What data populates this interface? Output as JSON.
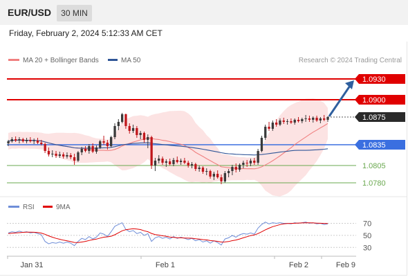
{
  "header": {
    "symbol": "EUR/USD",
    "interval": "30 MIN",
    "datetime": "Friday, February 2, 2024 5:12:33 AM CET"
  },
  "legend": {
    "ma20": "MA 20 + Bollinger Bands",
    "ma50": "MA 50",
    "credit": "Research © 2024 Trading Central",
    "rsi": "RSI",
    "rsi_ma": "9MA"
  },
  "colors": {
    "up_candle": "#3a3a3a",
    "down_candle": "#c0161b",
    "bollinger_fill": "#fbd9d9",
    "ma20": "#f08080",
    "ma50": "#2f5597",
    "resistance": "#e00000",
    "pivot": "#2a2a2a",
    "support_blue": "#3a6fe0",
    "support_green": "#6aa84f",
    "arrow": "#2f5f9e",
    "rsi_line": "#6f8ed8",
    "rsi_ma": "#e00000"
  },
  "chart_data": {
    "type": "candlestick",
    "price_ylim": [
      1.0768,
      1.0948
    ],
    "levels": [
      {
        "value": 1.093,
        "label": "1.0930",
        "kind": "resistance"
      },
      {
        "value": 1.09,
        "label": "1.0900",
        "kind": "resistance"
      },
      {
        "value": 1.0875,
        "label": "1.0875",
        "kind": "pivot"
      },
      {
        "value": 1.0835,
        "label": "1.0835",
        "kind": "support"
      },
      {
        "value": 1.0805,
        "label": "1.0805",
        "kind": "support"
      },
      {
        "value": 1.078,
        "label": "1.0780",
        "kind": "support"
      }
    ],
    "target_arrow": {
      "from": 1.0876,
      "to": 1.0928
    },
    "x_labels": [
      "Jan 31",
      "Feb 1",
      "Feb 2",
      "Feb 9"
    ],
    "candles": [
      [
        1.0837,
        1.0842,
        1.0833,
        1.084
      ],
      [
        1.084,
        1.0846,
        1.0838,
        1.0843
      ],
      [
        1.0843,
        1.0847,
        1.0839,
        1.0841
      ],
      [
        1.0841,
        1.0846,
        1.0837,
        1.0843
      ],
      [
        1.0843,
        1.0845,
        1.0838,
        1.084
      ],
      [
        1.084,
        1.0845,
        1.0837,
        1.0842
      ],
      [
        1.0842,
        1.0846,
        1.0838,
        1.084
      ],
      [
        1.084,
        1.0844,
        1.0836,
        1.0841
      ],
      [
        1.0841,
        1.0845,
        1.0836,
        1.0838
      ],
      [
        1.0838,
        1.0842,
        1.0834,
        1.0836
      ],
      [
        1.0836,
        1.0838,
        1.0823,
        1.0826
      ],
      [
        1.0826,
        1.0831,
        1.0818,
        1.0821
      ],
      [
        1.0821,
        1.0827,
        1.0817,
        1.0822
      ],
      [
        1.0822,
        1.0826,
        1.0816,
        1.0819
      ],
      [
        1.0819,
        1.0825,
        1.0816,
        1.0821
      ],
      [
        1.0821,
        1.0824,
        1.0815,
        1.0818
      ],
      [
        1.0818,
        1.0824,
        1.0815,
        1.082
      ],
      [
        1.082,
        1.0823,
        1.0814,
        1.0817
      ],
      [
        1.0817,
        1.0822,
        1.0806,
        1.0812
      ],
      [
        1.0812,
        1.0826,
        1.081,
        1.0824
      ],
      [
        1.0824,
        1.0832,
        1.082,
        1.0829
      ],
      [
        1.0829,
        1.0833,
        1.0824,
        1.0826
      ],
      [
        1.0826,
        1.0836,
        1.0822,
        1.0833
      ],
      [
        1.0833,
        1.0837,
        1.0823,
        1.0825
      ],
      [
        1.0825,
        1.0834,
        1.0822,
        1.0831
      ],
      [
        1.0831,
        1.0842,
        1.0829,
        1.084
      ],
      [
        1.084,
        1.0848,
        1.0835,
        1.0838
      ],
      [
        1.0838,
        1.0842,
        1.0828,
        1.0833
      ],
      [
        1.0833,
        1.0848,
        1.0831,
        1.0846
      ],
      [
        1.0846,
        1.0866,
        1.0843,
        1.0862
      ],
      [
        1.0862,
        1.0872,
        1.0856,
        1.0868
      ],
      [
        1.0868,
        1.0881,
        1.0866,
        1.0879
      ],
      [
        1.0879,
        1.088,
        1.0858,
        1.0862
      ],
      [
        1.0862,
        1.0866,
        1.0851,
        1.0855
      ],
      [
        1.0855,
        1.0864,
        1.0852,
        1.0859
      ],
      [
        1.0859,
        1.0862,
        1.0845,
        1.0849
      ],
      [
        1.0849,
        1.0855,
        1.0843,
        1.0852
      ],
      [
        1.0852,
        1.0854,
        1.0838,
        1.0842
      ],
      [
        1.0842,
        1.085,
        1.083,
        1.0846
      ],
      [
        1.0846,
        1.0848,
        1.08,
        1.0805
      ],
      [
        1.0805,
        1.0816,
        1.0797,
        1.0812
      ],
      [
        1.0812,
        1.082,
        1.0808,
        1.0815
      ],
      [
        1.0815,
        1.0818,
        1.0806,
        1.0809
      ],
      [
        1.0809,
        1.0814,
        1.0803,
        1.0811
      ],
      [
        1.0811,
        1.0815,
        1.0805,
        1.0807
      ],
      [
        1.0807,
        1.0816,
        1.0804,
        1.0813
      ],
      [
        1.0813,
        1.0818,
        1.0808,
        1.081
      ],
      [
        1.081,
        1.0815,
        1.0806,
        1.0812
      ],
      [
        1.0812,
        1.0816,
        1.0807,
        1.0809
      ],
      [
        1.0809,
        1.0812,
        1.0802,
        1.0805
      ],
      [
        1.0805,
        1.081,
        1.0801,
        1.0807
      ],
      [
        1.0807,
        1.0809,
        1.0797,
        1.08
      ],
      [
        1.08,
        1.0805,
        1.0796,
        1.0802
      ],
      [
        1.0802,
        1.0804,
        1.0793,
        1.0796
      ],
      [
        1.0796,
        1.0801,
        1.0791,
        1.0797
      ],
      [
        1.0797,
        1.0799,
        1.0786,
        1.0789
      ],
      [
        1.0789,
        1.0796,
        1.0784,
        1.0793
      ],
      [
        1.0793,
        1.0798,
        1.0786,
        1.0788
      ],
      [
        1.0788,
        1.0792,
        1.0778,
        1.0782
      ],
      [
        1.0782,
        1.0797,
        1.078,
        1.0794
      ],
      [
        1.0794,
        1.08,
        1.0788,
        1.0797
      ],
      [
        1.0797,
        1.0806,
        1.0791,
        1.0803
      ],
      [
        1.0803,
        1.0808,
        1.0795,
        1.0799
      ],
      [
        1.0799,
        1.0808,
        1.0796,
        1.0806
      ],
      [
        1.0806,
        1.0812,
        1.0801,
        1.0809
      ],
      [
        1.0809,
        1.0813,
        1.0803,
        1.0808
      ],
      [
        1.0808,
        1.0815,
        1.0804,
        1.0812
      ],
      [
        1.0812,
        1.0816,
        1.0806,
        1.0809
      ],
      [
        1.0809,
        1.0829,
        1.0806,
        1.0826
      ],
      [
        1.0826,
        1.0848,
        1.0824,
        1.0845
      ],
      [
        1.0845,
        1.0864,
        1.0842,
        1.0861
      ],
      [
        1.0861,
        1.0868,
        1.0855,
        1.0858
      ],
      [
        1.0858,
        1.087,
        1.0855,
        1.0867
      ],
      [
        1.0867,
        1.0872,
        1.0861,
        1.0864
      ],
      [
        1.0864,
        1.0873,
        1.0862,
        1.087
      ],
      [
        1.087,
        1.0874,
        1.0865,
        1.0868
      ],
      [
        1.0868,
        1.0872,
        1.0864,
        1.0869
      ],
      [
        1.0869,
        1.0873,
        1.0865,
        1.0867
      ],
      [
        1.0867,
        1.0873,
        1.0864,
        1.0871
      ],
      [
        1.0871,
        1.0875,
        1.0867,
        1.0869
      ],
      [
        1.0869,
        1.0874,
        1.0866,
        1.0872
      ],
      [
        1.0872,
        1.0878,
        1.0868,
        1.0873
      ],
      [
        1.0873,
        1.0877,
        1.0868,
        1.0871
      ],
      [
        1.0871,
        1.0876,
        1.0867,
        1.0874
      ],
      [
        1.0874,
        1.0877,
        1.0868,
        1.087
      ],
      [
        1.087,
        1.0875,
        1.0866,
        1.0873
      ],
      [
        1.0873,
        1.0878,
        1.0869,
        1.0871
      ],
      [
        1.0871,
        1.0876,
        1.0868,
        1.0875
      ]
    ],
    "rsi_ylim": [
      20,
      82
    ],
    "rsi_ticks": [
      70,
      50,
      30
    ],
    "rsi": [
      54,
      56,
      55,
      57,
      55,
      56,
      54,
      55,
      53,
      51,
      40,
      36,
      38,
      37,
      39,
      37,
      39,
      37,
      33,
      40,
      45,
      43,
      48,
      44,
      47,
      54,
      52,
      48,
      56,
      65,
      68,
      71,
      60,
      56,
      58,
      53,
      55,
      50,
      53,
      40,
      46,
      48,
      45,
      47,
      44,
      48,
      45,
      47,
      45,
      43,
      45,
      41,
      43,
      39,
      41,
      37,
      41,
      38,
      34,
      44,
      46,
      50,
      47,
      51,
      53,
      52,
      54,
      52,
      62,
      68,
      72,
      69,
      71,
      70,
      71,
      70,
      70,
      69,
      71,
      70,
      71,
      72,
      70,
      71,
      69,
      70,
      68,
      69
    ],
    "rsi_ma": [
      53,
      53.5,
      54,
      54.5,
      55,
      55.3,
      55.2,
      55.1,
      54.8,
      53.8,
      51.8,
      49.2,
      47,
      45,
      43.5,
      42,
      41,
      39.6,
      38.2,
      38,
      39,
      40,
      41.5,
      42.8,
      43.8,
      45.5,
      47,
      47.6,
      48.6,
      51,
      54.2,
      57.5,
      59.4,
      60.2,
      61,
      60.5,
      59.6,
      57.6,
      56.1,
      53.2,
      51.4,
      50.4,
      49.3,
      48.6,
      47.1,
      46.7,
      46,
      45.9,
      45.6,
      45.4,
      45.3,
      44.5,
      43.9,
      43,
      42.5,
      41.3,
      40.8,
      40.1,
      38.9,
      39.1,
      39.8,
      41.2,
      42.3,
      44,
      46,
      47.8,
      49.6,
      50.7,
      53,
      55.9,
      59.1,
      61.9,
      64.4,
      66.2,
      67.9,
      69,
      69.6,
      69.8,
      70.1,
      70.4,
      70.6,
      70.9,
      70.8,
      70.6,
      70.3,
      70.1,
      69.8,
      69.6
    ]
  }
}
